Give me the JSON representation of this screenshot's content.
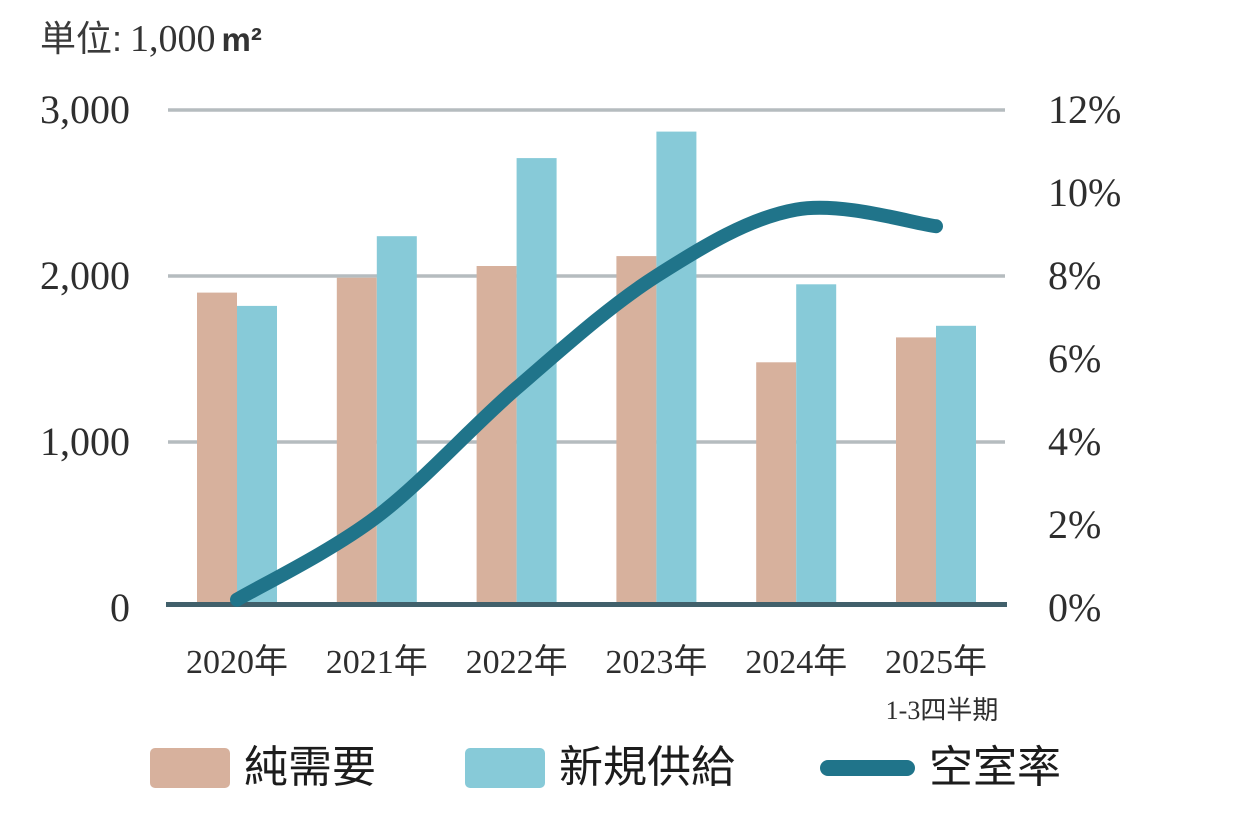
{
  "header": {
    "unit_prefix": "単位:",
    "unit_value": "1,000",
    "unit_suffix": "m²"
  },
  "chart_data": {
    "type": "bar",
    "subtype": "grouped-bars-with-line-overlay",
    "title": "単位: 1,000 m²",
    "categories": [
      "2020年",
      "2021年",
      "2022年",
      "2023年",
      "2024年",
      "2025年"
    ],
    "category_note": "1-3四半期",
    "category_note_index": 5,
    "left_axis": {
      "unit": "1,000 m²",
      "min": 0,
      "max": 3000,
      "ticks": [
        "3,000",
        "2,000",
        "1,000",
        "0"
      ],
      "tick_values": [
        3000,
        2000,
        1000,
        0
      ]
    },
    "right_axis": {
      "unit": "%",
      "min": 0,
      "max": 12,
      "ticks": [
        "12%",
        "10%",
        "8%",
        "6%",
        "4%",
        "2%",
        "0%"
      ],
      "tick_values": [
        12,
        10,
        8,
        6,
        4,
        2,
        0
      ]
    },
    "series": [
      {
        "name": "純需要",
        "type": "bar",
        "axis": "left",
        "color": "#d7b19d",
        "values": [
          1900,
          1990,
          2060,
          2120,
          1480,
          1630
        ]
      },
      {
        "name": "新規供給",
        "type": "bar",
        "axis": "left",
        "color": "#87cad8",
        "values": [
          1820,
          2240,
          2710,
          2870,
          1950,
          1700
        ]
      },
      {
        "name": "空室率",
        "type": "line",
        "axis": "right",
        "color": "#20748a",
        "values": [
          0.2,
          2.2,
          5.3,
          8.0,
          9.6,
          9.2
        ]
      }
    ],
    "legend": {
      "position": "bottom",
      "items": [
        "純需要",
        "新規供給",
        "空室率"
      ]
    },
    "grid": {
      "horizontal": true,
      "vertical": false
    },
    "colors": {
      "grid": "#b5bcbf",
      "baseline": "#41606b",
      "text": "#2e2e2e"
    }
  }
}
